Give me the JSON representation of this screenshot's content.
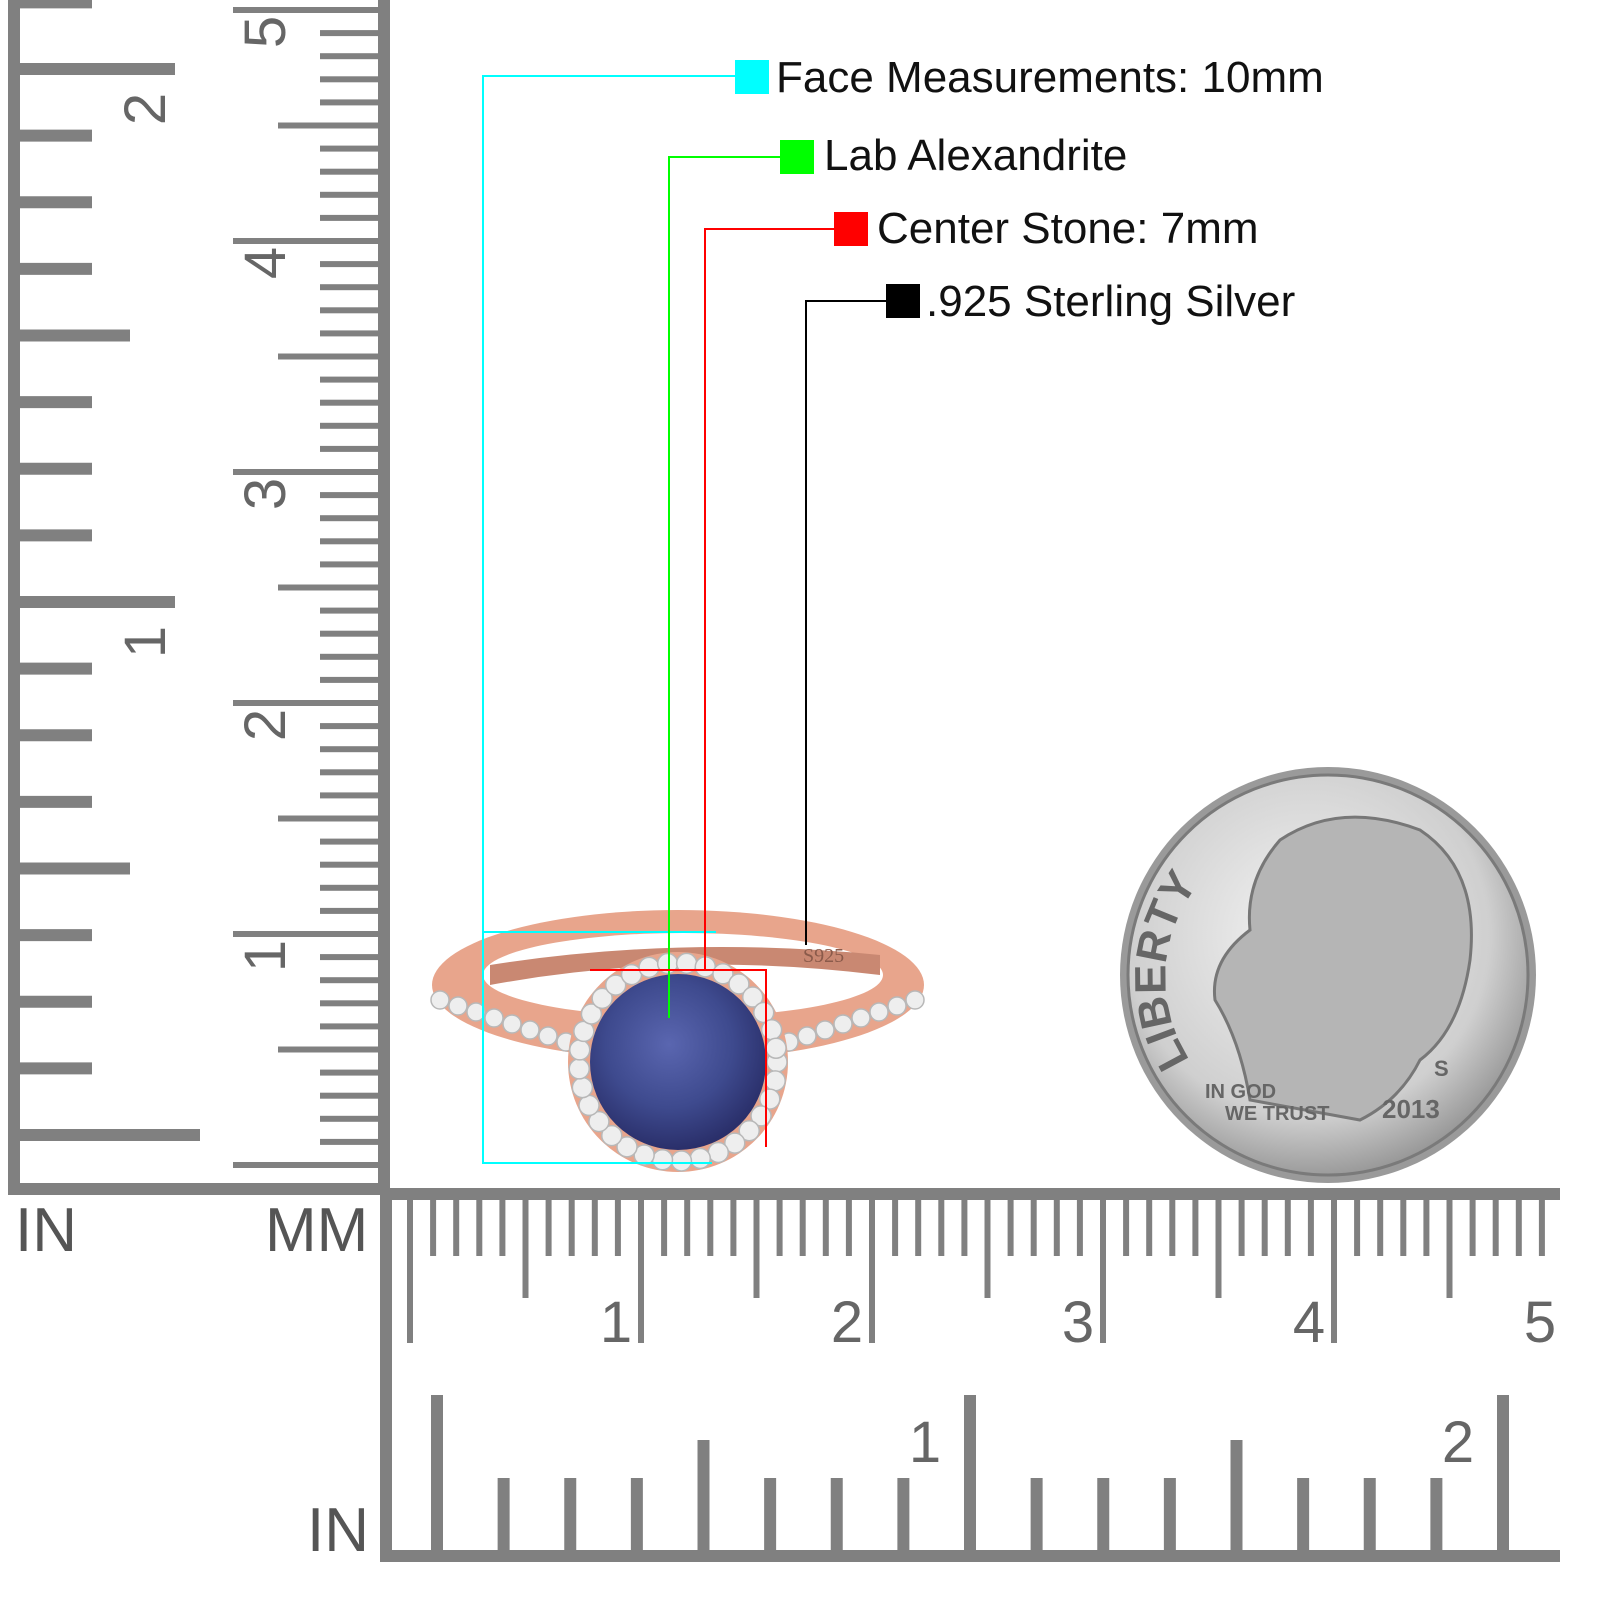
{
  "callouts": [
    {
      "label": "Face Measurements: 10mm",
      "color": "#00ffff"
    },
    {
      "label": "Lab Alexandrite",
      "color": "#00ff00"
    },
    {
      "label": "Center Stone: 7mm",
      "color": "#ff0000"
    },
    {
      "label": ".925 Sterling Silver",
      "color": "#000000"
    }
  ],
  "rulers": {
    "vertical": {
      "cm_labels": [
        "1",
        "2",
        "3",
        "4",
        "5"
      ],
      "inch_labels": [
        "1",
        "2"
      ]
    },
    "horizontal": {
      "cm_labels": [
        "1",
        "2",
        "3",
        "4",
        "5"
      ],
      "inch_labels": [
        "1",
        "2"
      ]
    },
    "unit_labels": {
      "left_in": "IN",
      "mm": "MM",
      "bottom_in": "IN"
    },
    "color": "#808080"
  },
  "ring": {
    "engraving": "S925",
    "metal_color": "#e8a58c",
    "stone_color": "#3e4a8e"
  },
  "coin": {
    "liberty": "LIBERTY",
    "motto_line1": "IN GOD",
    "motto_line2": "WE TRUST",
    "mint_mark": "S",
    "year": "2013"
  }
}
